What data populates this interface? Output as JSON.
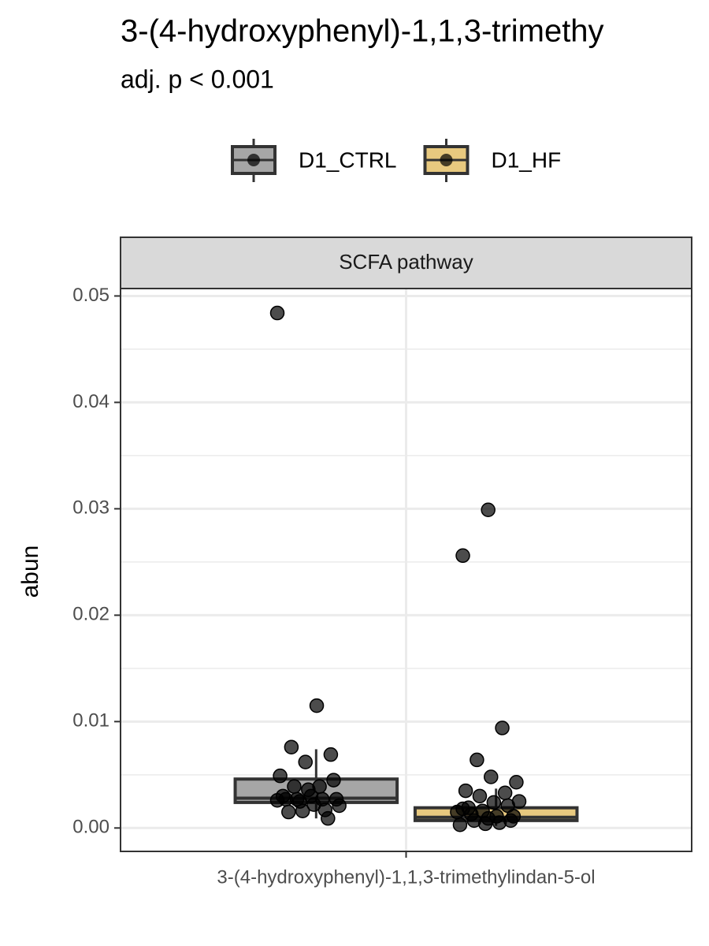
{
  "chart_data": {
    "type": "box",
    "title": "3-(4-hydroxyphenyl)-1,1,3-trimethy",
    "subtitle": "adj. p < 0.001",
    "facet": "SCFA pathway",
    "y_label": "abun",
    "categories": [
      "3-(4-hydroxyphenyl)-1,1,3-trimethylindan-5-ol"
    ],
    "ylim": [
      -0.0022,
      0.0507
    ],
    "yticks": [
      {
        "value": 0,
        "label": "0.00"
      },
      0.01,
      0.02,
      0.03,
      0.04,
      0.05
    ],
    "grid": true,
    "legend": "top",
    "series": [
      {
        "name": "D1_CTRL",
        "color": "#a6a6a6",
        "box": {
          "lower": 0.0009,
          "q1": 0.0024,
          "median": 0.0028,
          "q3": 0.0046,
          "upper": 0.0074
        },
        "points": [
          0.0484,
          0.0115,
          0.0076,
          0.0069,
          0.0062,
          0.0049,
          0.0039,
          0.0039,
          0.0045,
          0.0036,
          0.003,
          0.0027,
          0.0027,
          0.0027,
          0.003,
          0.0027,
          0.0017,
          0.0025,
          0.0021,
          0.0022,
          0.0015,
          0.0009,
          0.0016,
          0.0026
        ]
      },
      {
        "name": "D1_HF",
        "color": "#e8c97f",
        "box": {
          "lower": 0.0002,
          "q1": 0.0007,
          "median": 0.001,
          "q3": 0.0019,
          "upper": 0.0037
        },
        "points": [
          0.0299,
          0.0256,
          0.0094,
          0.0064,
          0.0043,
          0.0048,
          0.0035,
          0.0033,
          0.003,
          0.0025,
          0.0024,
          0.0019,
          0.0021,
          0.0016,
          0.0015,
          0.0011,
          0.0013,
          0.0007,
          0.0004,
          0.0003,
          0.0005,
          0.0007,
          0.0011,
          0.0009,
          0.0018
        ]
      }
    ]
  }
}
